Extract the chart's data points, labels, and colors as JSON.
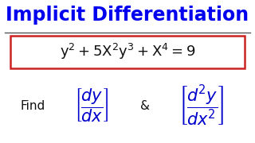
{
  "title": "Implicit Differentiation",
  "title_color": "#0000EE",
  "title_fontsize": 17,
  "background_color": "#FFFFFF",
  "equation_color": "#111111",
  "equation_box_color": "#CC2222",
  "find_color": "#111111",
  "find_fontsize": 11,
  "deriv_color": "#0000CC",
  "ampersand_color": "#111111",
  "line_color": "#555555",
  "bracket_color": "#2222BB",
  "eq_fontsize": 13,
  "deriv_fontsize": 15
}
